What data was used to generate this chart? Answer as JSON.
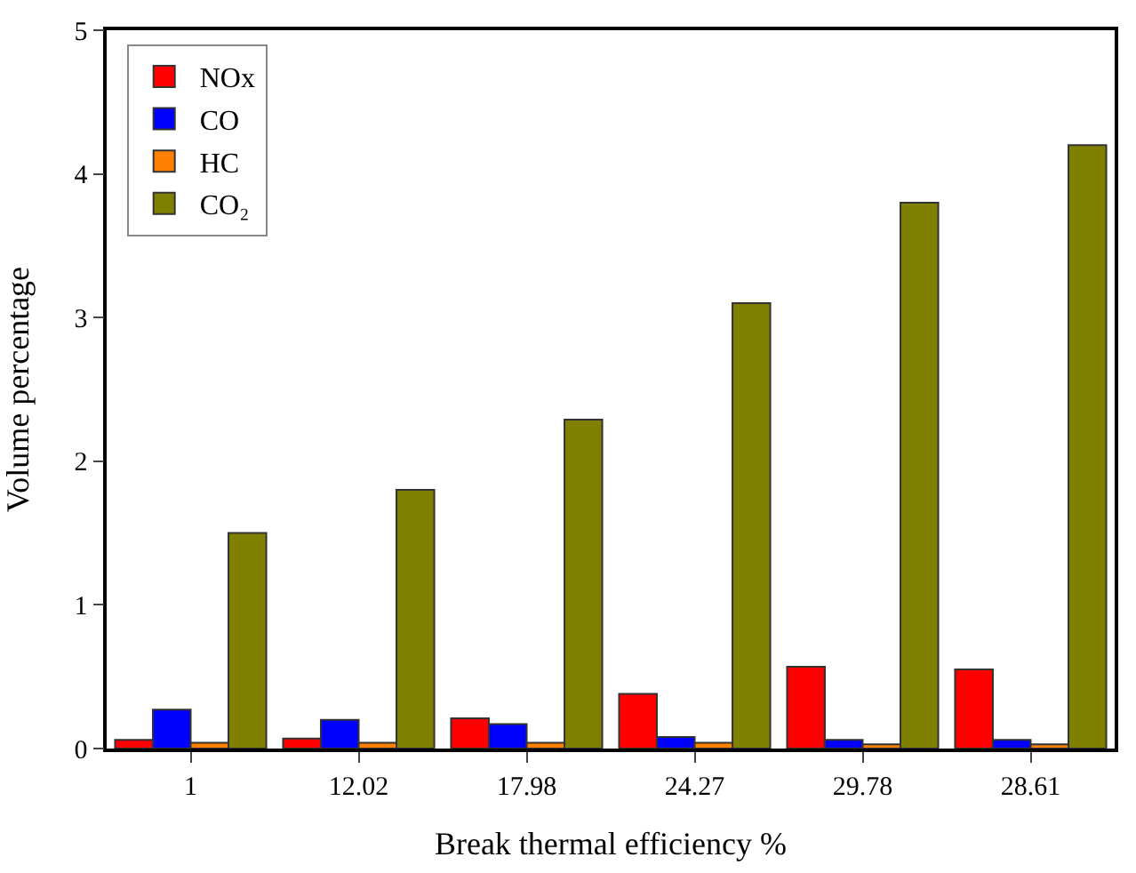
{
  "chart_data": {
    "type": "bar",
    "xlabel": "Break thermal efficiency %",
    "ylabel": "Volume percentage",
    "categories": [
      "1",
      "12.02",
      "17.98",
      "24.27",
      "29.78",
      "28.61"
    ],
    "series": [
      {
        "name": "NOx",
        "color": "#ff0000",
        "values": [
          0.06,
          0.07,
          0.21,
          0.38,
          0.57,
          0.55
        ]
      },
      {
        "name": "CO",
        "color": "#0000ff",
        "values": [
          0.27,
          0.2,
          0.17,
          0.08,
          0.06,
          0.06
        ]
      },
      {
        "name": "HC",
        "color": "#ff8000",
        "values": [
          0.04,
          0.04,
          0.04,
          0.04,
          0.03,
          0.03
        ]
      },
      {
        "name": "CO₂",
        "color": "#808000",
        "values": [
          1.5,
          1.8,
          2.29,
          3.1,
          3.8,
          4.2
        ]
      }
    ],
    "ylim": [
      0,
      5
    ],
    "yticks": [
      0,
      1,
      2,
      3,
      4,
      5
    ],
    "grid": false,
    "legend": "top left"
  }
}
